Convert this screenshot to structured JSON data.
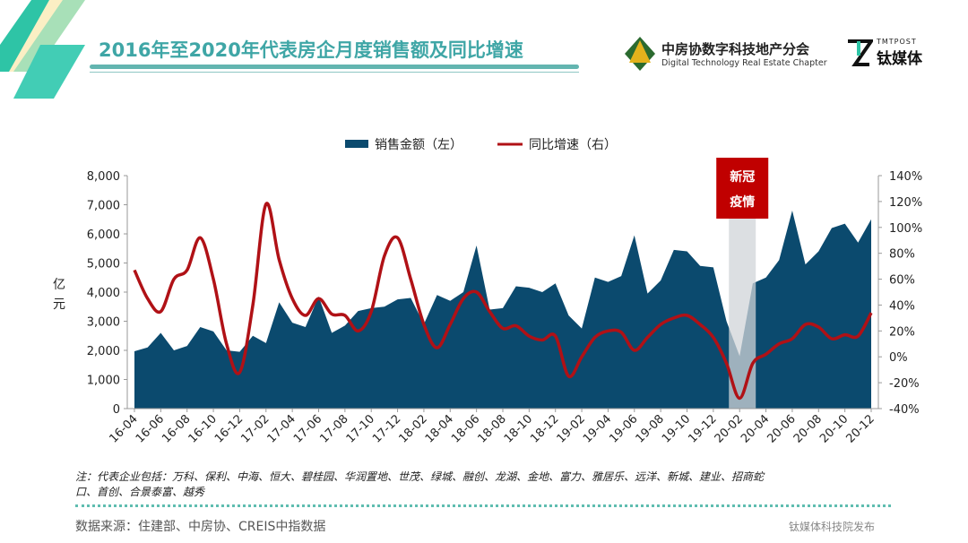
{
  "header": {
    "title": "2016年至2020年代表房企月度销售额及同比增速",
    "logo1": {
      "cn": "中房协数字科技地产分会",
      "en": "Digital Technology Real Estate Chapter"
    },
    "logo2": {
      "small": "TMTPOST",
      "big": "钛媒体"
    }
  },
  "chart_data": {
    "type": "area+line",
    "legend": [
      "销售金额（左）",
      "同比增速（右）"
    ],
    "legend_position": "top",
    "ylabel": "亿元",
    "ylim": [
      0,
      8000
    ],
    "y2lim": [
      -40,
      140
    ],
    "yticks": [
      "0",
      "1,000",
      "2,000",
      "3,000",
      "4,000",
      "5,000",
      "6,000",
      "7,000",
      "8,000"
    ],
    "y2ticks": [
      "-40%",
      "-20%",
      "0%",
      "20%",
      "40%",
      "60%",
      "80%",
      "100%",
      "120%",
      "140%"
    ],
    "xticks": [
      "16-04",
      "16-06",
      "16-08",
      "16-10",
      "16-12",
      "17-02",
      "17-04",
      "17-06",
      "17-08",
      "17-10",
      "17-12",
      "18-02",
      "18-04",
      "18-06",
      "18-08",
      "18-10",
      "18-12",
      "19-02",
      "19-04",
      "19-06",
      "19-08",
      "19-10",
      "19-12",
      "20-02",
      "20-04",
      "20-06",
      "20-08",
      "20-10",
      "20-12"
    ],
    "series": [
      {
        "name": "销售金额（左）",
        "type": "area",
        "color": "#0b4a6e",
        "axis": "left",
        "values": [
          1970,
          2100,
          2600,
          2000,
          2150,
          2800,
          2650,
          2000,
          1950,
          2500,
          2250,
          3650,
          2950,
          2800,
          3850,
          2600,
          2850,
          3350,
          3450,
          3500,
          3750,
          3800,
          2900,
          3900,
          3700,
          4000,
          5600,
          3400,
          3450,
          4200,
          4150,
          4000,
          4300,
          3200,
          2750,
          4500,
          4350,
          4550,
          5950,
          3950,
          4400,
          5450,
          5400,
          4900,
          4850,
          3000,
          1800,
          4300,
          4500,
          5100,
          6800,
          4950,
          5400,
          6200,
          6350,
          5700,
          6500
        ]
      },
      {
        "name": "同比增速（右）",
        "type": "line",
        "color": "#b01116",
        "axis": "right",
        "values": [
          67,
          45,
          35,
          60,
          67,
          92,
          60,
          10,
          -12,
          40,
          118,
          75,
          45,
          32,
          45,
          33,
          32,
          20,
          35,
          78,
          92,
          60,
          25,
          7,
          25,
          45,
          50,
          35,
          22,
          24,
          16,
          13,
          16,
          -15,
          0,
          15,
          20,
          19,
          5,
          15,
          25,
          30,
          32,
          25,
          15,
          -5,
          -32,
          -5,
          2,
          10,
          14,
          25,
          23,
          14,
          17,
          16,
          34
        ]
      }
    ],
    "annotation": {
      "text1": "新冠",
      "text2": "疫情",
      "month": "20-02",
      "color": "#c00000"
    }
  },
  "footer": {
    "note": "注：代表企业包括：万科、保利、中海、恒大、碧桂园、华润置地、世茂、绿城、融创、龙湖、金地、富力、雅居乐、远洋、新城、建业、招商蛇口、首创、合景泰富、越秀",
    "source": "数据来源：住建部、中房协、CREIS中指数据",
    "release": "钛媒体科技院发布"
  }
}
